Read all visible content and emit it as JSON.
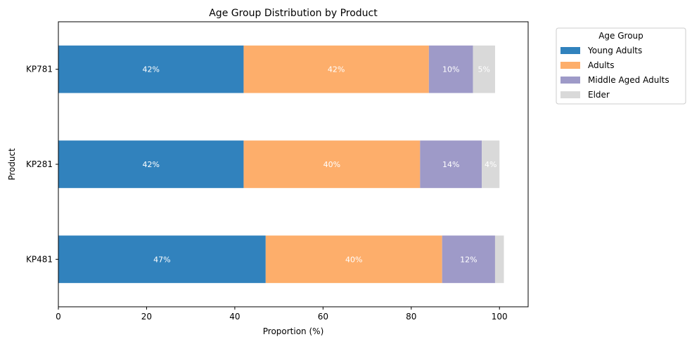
{
  "chart_data": {
    "type": "bar",
    "orientation": "horizontal",
    "stacked": true,
    "title": "Age Group Distribution by Product",
    "xlabel": "Proportion (%)",
    "ylabel": "Product",
    "xlim": [
      0,
      106.5
    ],
    "xticks": [
      0,
      20,
      40,
      60,
      80,
      100
    ],
    "categories": [
      "KP781",
      "KP281",
      "KP481"
    ],
    "legend": {
      "title": "Age Group",
      "placement": "outside-top-right"
    },
    "grid": false,
    "series": [
      {
        "name": "Young Adults",
        "color": "#3182bd",
        "values": [
          42,
          42,
          47
        ],
        "labels": [
          "42%",
          "42%",
          "47%"
        ]
      },
      {
        "name": "Adults",
        "color": "#fdae6b",
        "values": [
          42,
          40,
          40
        ],
        "labels": [
          "42%",
          "40%",
          "40%"
        ]
      },
      {
        "name": "Middle Aged Adults",
        "color": "#9e9ac8",
        "values": [
          10,
          14,
          12
        ],
        "labels": [
          "10%",
          "14%",
          "12%"
        ]
      },
      {
        "name": "Elder",
        "color": "#d9d9d9",
        "values": [
          5,
          4,
          2
        ],
        "labels": [
          "5%",
          "4%",
          ""
        ]
      }
    ]
  }
}
